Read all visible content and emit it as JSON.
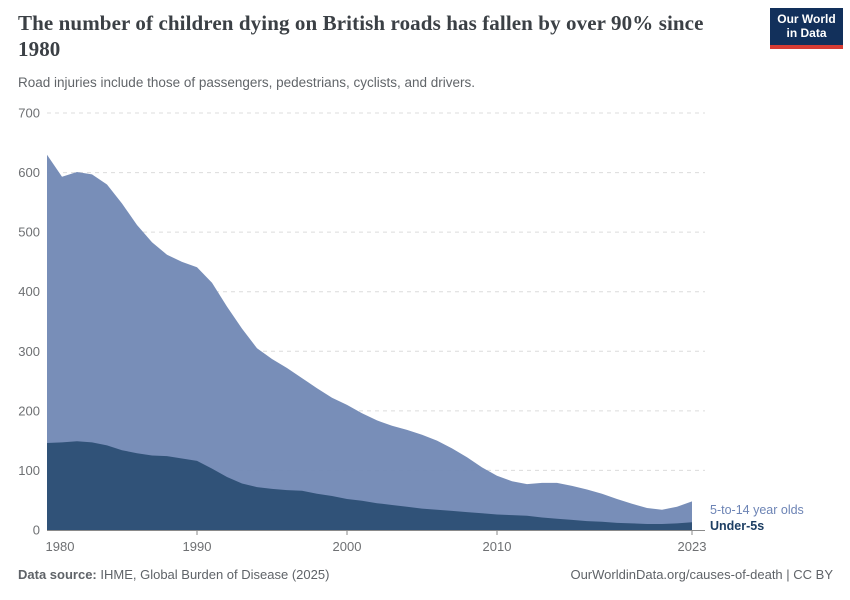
{
  "header": {
    "title": "The number of children dying on British roads has fallen by over 90% since 1980",
    "subtitle": "Road injuries include those of passengers, pedestrians, cyclists, and drivers.",
    "logo": {
      "line1": "Our World",
      "line2": "in Data",
      "bg_color": "#12305b",
      "accent_color": "#d73c34"
    }
  },
  "chart_data": {
    "type": "area",
    "stacked": true,
    "title": "Children dying on British roads",
    "xlabel": "",
    "ylabel": "",
    "ylim": [
      0,
      700
    ],
    "grid": true,
    "legend_position": "right-of-last-point",
    "x": [
      1980,
      1981,
      1982,
      1983,
      1984,
      1985,
      1986,
      1987,
      1988,
      1989,
      1990,
      1991,
      1992,
      1993,
      1994,
      1995,
      1996,
      1997,
      1998,
      1999,
      2000,
      2001,
      2002,
      2003,
      2004,
      2005,
      2006,
      2007,
      2008,
      2009,
      2010,
      2011,
      2012,
      2013,
      2014,
      2015,
      2016,
      2017,
      2018,
      2019,
      2020,
      2021,
      2022,
      2023
    ],
    "series": [
      {
        "name": "Under-5s",
        "color": "#2f5176",
        "label_color": "#1d3e63",
        "values": [
          146,
          147,
          149,
          147,
          142,
          134,
          129,
          125,
          124,
          120,
          116,
          103,
          89,
          78,
          72,
          69,
          67,
          66,
          61,
          57,
          52,
          49,
          45,
          42,
          39,
          36,
          34,
          32,
          30,
          28,
          26,
          25,
          24,
          21,
          19,
          17,
          15,
          14,
          12,
          11,
          10,
          10,
          11,
          13
        ]
      },
      {
        "name": "5-to-14 year olds",
        "color": "#7289b5",
        "label_color": "#6d84b5",
        "values": [
          484,
          446,
          452,
          450,
          438,
          414,
          383,
          358,
          338,
          330,
          325,
          312,
          286,
          260,
          233,
          218,
          205,
          189,
          177,
          165,
          158,
          147,
          139,
          133,
          129,
          124,
          116,
          105,
          92,
          77,
          65,
          57,
          53,
          58,
          60,
          57,
          53,
          47,
          40,
          33,
          27,
          24,
          28,
          35
        ]
      }
    ],
    "totals": [
      630,
      593,
      601,
      597,
      580,
      548,
      512,
      483,
      462,
      450,
      441,
      415,
      375,
      338,
      305,
      287,
      272,
      255,
      238,
      222,
      210,
      196,
      184,
      175,
      168,
      160,
      150,
      137,
      122,
      105,
      91,
      82,
      77,
      79,
      79,
      74,
      68,
      61,
      52,
      44,
      37,
      34,
      39,
      48
    ],
    "yticks": [
      0,
      100,
      200,
      300,
      400,
      500,
      600,
      700
    ],
    "xticks": [
      1980,
      1990,
      2000,
      2010,
      2023
    ],
    "axis_color": "#8a8a8a",
    "grid_color": "#dcdcdc",
    "tick_label_color": "#6e7073"
  },
  "footer": {
    "source_label": "Data source:",
    "source_text": " IHME, Global Burden of Disease (2025)",
    "credit": "OurWorldinData.org/causes-of-death | CC BY"
  }
}
